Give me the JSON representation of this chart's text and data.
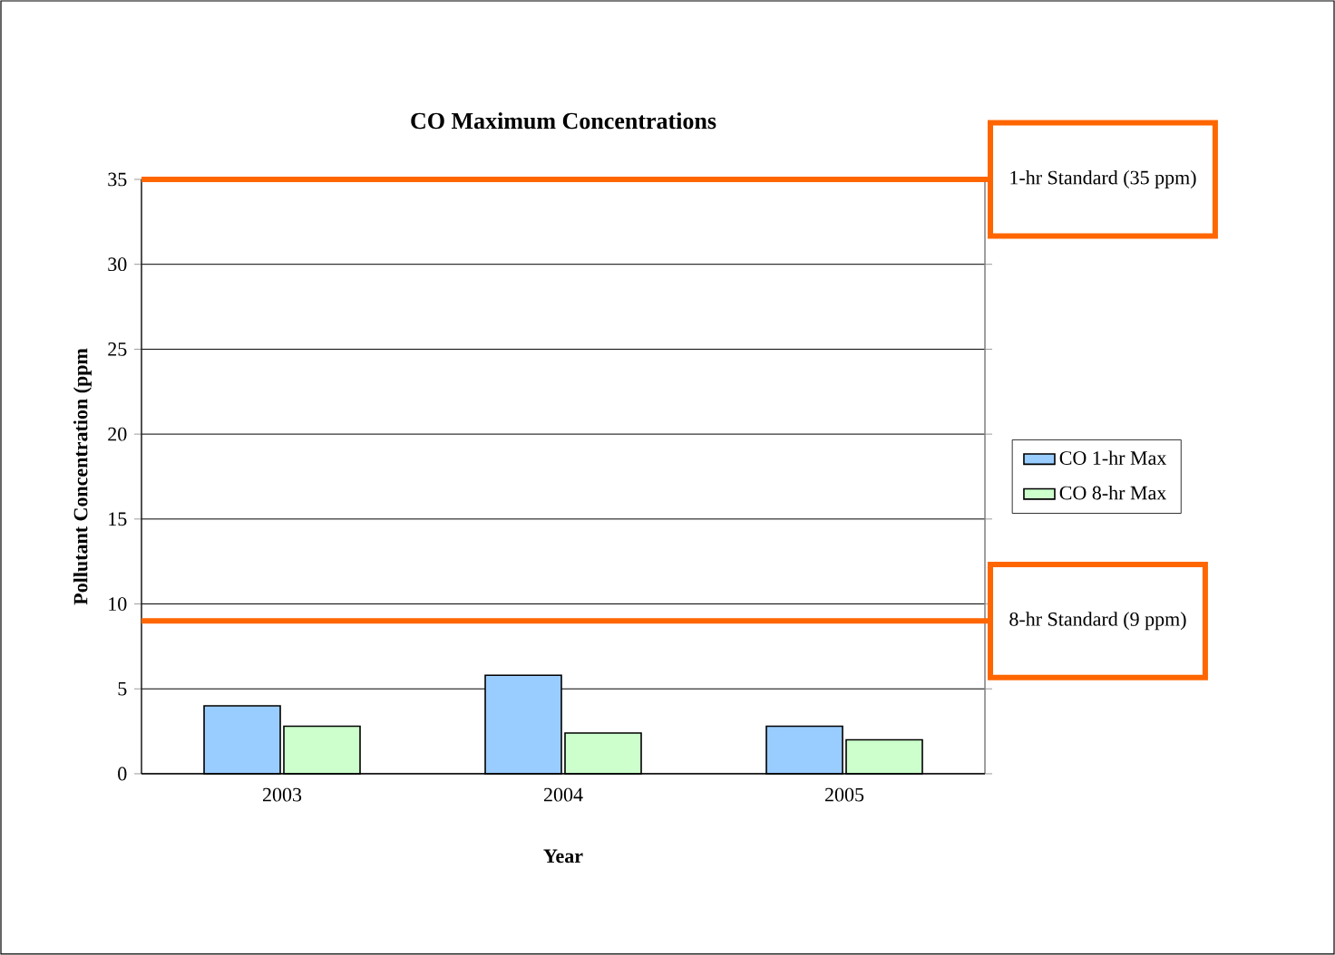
{
  "chart_data": {
    "type": "bar",
    "title": "CO Maximum Concentrations",
    "xlabel": "Year",
    "ylabel": "Pollutant Concentration (ppm",
    "categories": [
      "2003",
      "2004",
      "2005"
    ],
    "series": [
      {
        "name": "CO 1-hr Max",
        "color": "#99ccff",
        "values": [
          4.0,
          5.8,
          2.8
        ]
      },
      {
        "name": "CO 8-hr Max",
        "color": "#ccffcc",
        "values": [
          2.8,
          2.4,
          2.0
        ]
      }
    ],
    "ylim": [
      0,
      35
    ],
    "yticks": [
      0,
      5,
      10,
      15,
      20,
      25,
      30,
      35
    ],
    "grid": "y",
    "legend": "right",
    "ref_lines": [
      {
        "axis": "y",
        "value": 35,
        "label": "1-hr Standard (35 ppm)",
        "color": "#ff6600"
      },
      {
        "axis": "y",
        "value": 9,
        "label": "8-hr Standard (9 ppm)",
        "color": "#ff6600"
      }
    ]
  }
}
